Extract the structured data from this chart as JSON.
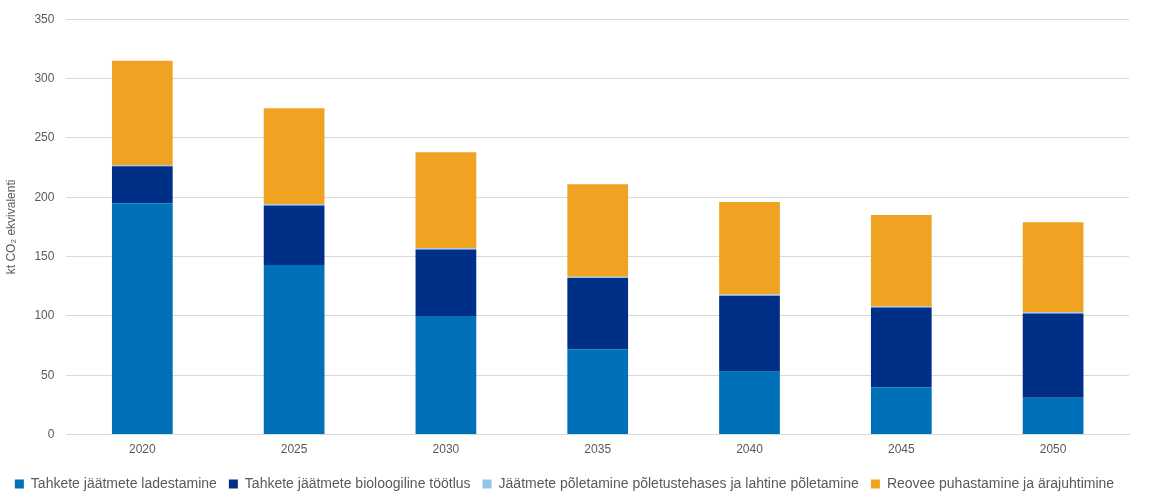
{
  "chart_data": {
    "type": "bar",
    "stacked": true,
    "ylabel": "kt CO₂ ekvivalenti",
    "categories": [
      "2020",
      "2025",
      "2030",
      "2035",
      "2040",
      "2045",
      "2050"
    ],
    "series": [
      {
        "name": "Tahkete jäätmete ladestamine",
        "color": "#0070b8",
        "values": [
          195,
          143,
          100,
          72,
          53,
          40,
          31
        ]
      },
      {
        "name": "Tahkete jäätmete bioloogiline töötlus",
        "color": "#002f87",
        "values": [
          31,
          50,
          56,
          60,
          64,
          67,
          71
        ]
      },
      {
        "name": "Jäätmete põletamine põletustehases ja lahtine põletamine",
        "color": "#8ec6ea",
        "values": [
          1,
          1,
          1,
          1,
          1,
          1,
          1
        ]
      },
      {
        "name": "Reovee puhastamine ja ärajuhtimine",
        "color": "#f0a323",
        "values": [
          88,
          81,
          81,
          78,
          78,
          77,
          76
        ]
      }
    ],
    "ylim": [
      0,
      350
    ],
    "yticks": [
      0,
      50,
      100,
      150,
      200,
      250,
      300,
      350
    ],
    "grid": "y",
    "legend": "bottom"
  }
}
